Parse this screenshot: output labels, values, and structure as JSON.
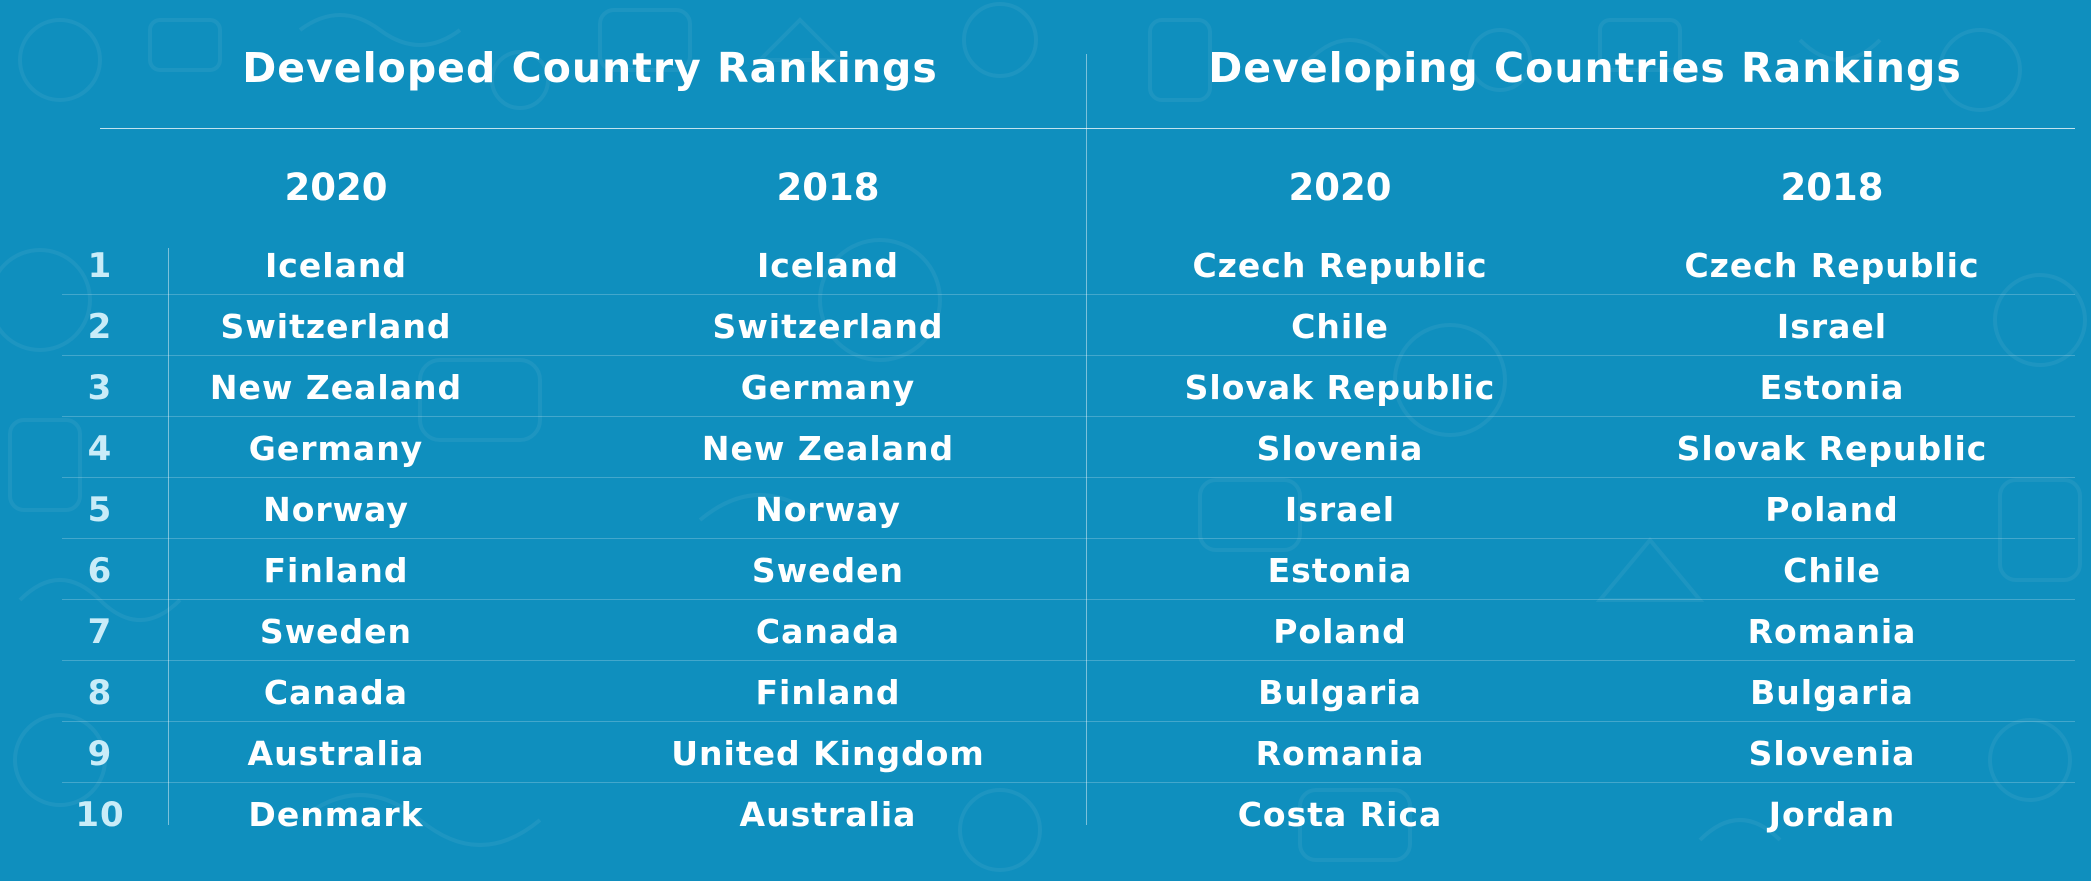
{
  "colors": {
    "background": "#0f8fbe",
    "text": "#ffffff",
    "rank_text": "#c9ecf8"
  },
  "developed": {
    "title": "Developed Country Rankings",
    "col_2020": "2020",
    "col_2018": "2018"
  },
  "developing": {
    "title": "Developing Countries Rankings",
    "col_2020": "2020",
    "col_2018": "2018"
  },
  "rows": [
    {
      "rank": "1",
      "dev_2020": "Iceland",
      "dev_2018": "Iceland",
      "dvg_2020": "Czech Republic",
      "dvg_2018": "Czech Republic"
    },
    {
      "rank": "2",
      "dev_2020": "Switzerland",
      "dev_2018": "Switzerland",
      "dvg_2020": "Chile",
      "dvg_2018": "Israel"
    },
    {
      "rank": "3",
      "dev_2020": "New Zealand",
      "dev_2018": "Germany",
      "dvg_2020": "Slovak Republic",
      "dvg_2018": "Estonia"
    },
    {
      "rank": "4",
      "dev_2020": "Germany",
      "dev_2018": "New Zealand",
      "dvg_2020": "Slovenia",
      "dvg_2018": "Slovak Republic"
    },
    {
      "rank": "5",
      "dev_2020": "Norway",
      "dev_2018": "Norway",
      "dvg_2020": "Israel",
      "dvg_2018": "Poland"
    },
    {
      "rank": "6",
      "dev_2020": "Finland",
      "dev_2018": "Sweden",
      "dvg_2020": "Estonia",
      "dvg_2018": "Chile"
    },
    {
      "rank": "7",
      "dev_2020": "Sweden",
      "dev_2018": "Canada",
      "dvg_2020": "Poland",
      "dvg_2018": "Romania"
    },
    {
      "rank": "8",
      "dev_2020": "Canada",
      "dev_2018": "Finland",
      "dvg_2020": "Bulgaria",
      "dvg_2018": "Bulgaria"
    },
    {
      "rank": "9",
      "dev_2020": "Australia",
      "dev_2018": "United Kingdom",
      "dvg_2020": "Romania",
      "dvg_2018": "Slovenia"
    },
    {
      "rank": "10",
      "dev_2020": "Denmark",
      "dev_2018": "Australia",
      "dvg_2020": "Costa Rica",
      "dvg_2018": "Jordan"
    }
  ]
}
